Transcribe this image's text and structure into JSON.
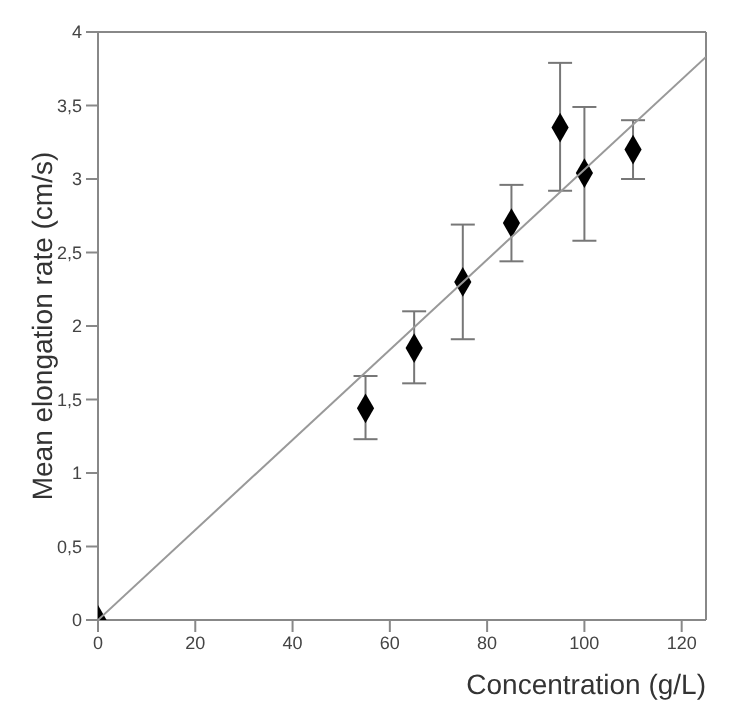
{
  "chart_data": {
    "type": "scatter",
    "xlabel": "Concentration (g/L)",
    "ylabel": "Mean elongation rate (cm/s)",
    "xlim": [
      0,
      125
    ],
    "xticks": [
      0,
      20,
      40,
      60,
      80,
      100,
      120
    ],
    "ylim": [
      0,
      4
    ],
    "yticks": [
      0,
      {
        "value": 0.5,
        "label": "0,5"
      },
      1,
      {
        "value": 1.5,
        "label": "1,5"
      },
      2,
      {
        "value": 2.5,
        "label": "2,5"
      },
      3,
      {
        "value": 3.5,
        "label": "3,5"
      },
      4
    ],
    "marker": "diamond",
    "series": [
      {
        "color": "#000000",
        "x": [
          0,
          55,
          65,
          75,
          85,
          95,
          100,
          110
        ],
        "values": [
          0,
          1.44,
          1.85,
          2.3,
          2.7,
          3.35,
          3.04,
          3.2
        ],
        "errors": [
          null,
          [
            1.23,
            1.66
          ],
          [
            1.61,
            2.1
          ],
          [
            1.91,
            2.69
          ],
          [
            2.44,
            2.96
          ],
          [
            2.92,
            3.79
          ],
          [
            2.58,
            3.49
          ],
          [
            3.0,
            3.4
          ]
        ]
      },
      {
        "type": "line",
        "color": "#999999",
        "x": [
          0,
          125
        ],
        "values": [
          0,
          3.83
        ],
        "marker": "none"
      }
    ]
  }
}
